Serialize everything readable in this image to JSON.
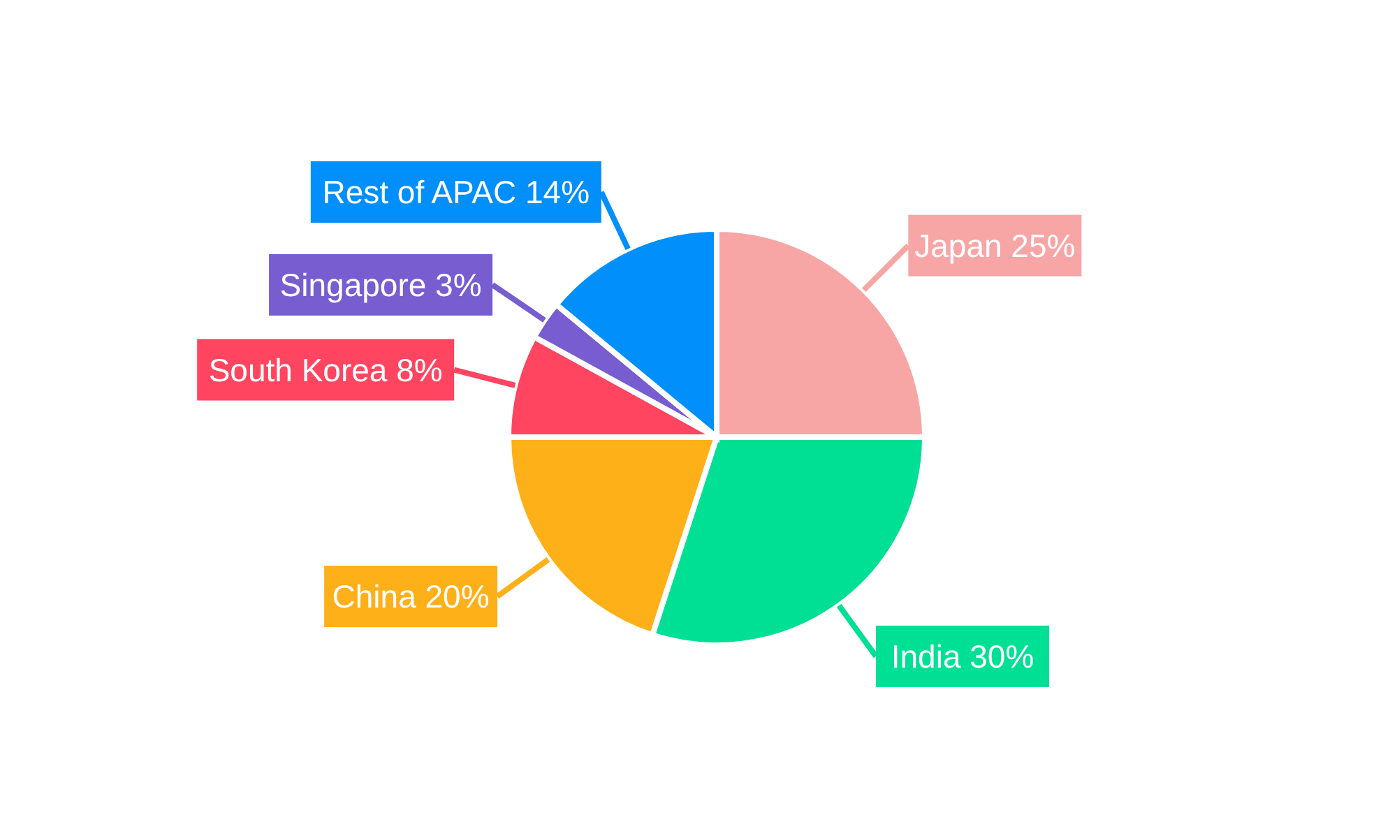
{
  "chart_data": {
    "type": "pie",
    "categories": [
      "Japan",
      "India",
      "China",
      "South Korea",
      "Singapore",
      "Rest of APAC"
    ],
    "values": [
      25,
      30,
      20,
      8,
      3,
      14
    ],
    "colors": [
      "#f8a5a6",
      "#00e095",
      "#feb019",
      "#ff4560",
      "#775dd0",
      "#008ffb"
    ],
    "value_labels": [
      "25%",
      "30%",
      "20%",
      "8%",
      "3%",
      "14%"
    ],
    "legend": false
  }
}
